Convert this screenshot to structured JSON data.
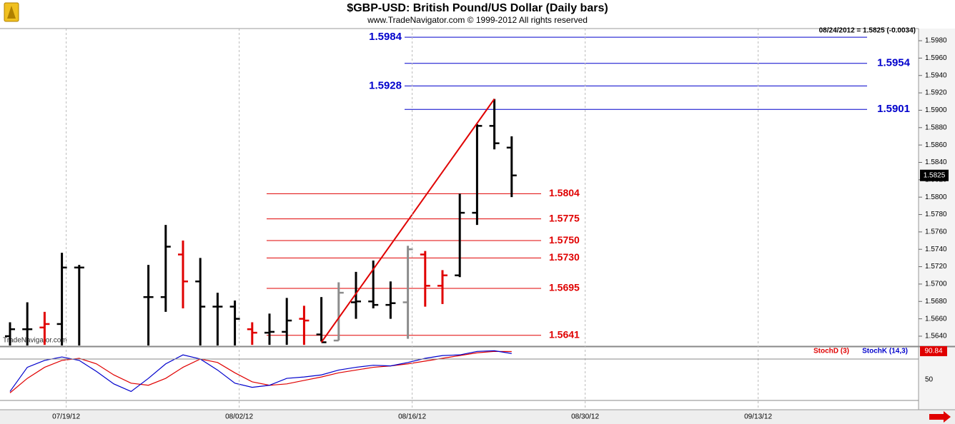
{
  "chart_data": [
    {
      "type": "ohlc",
      "title": "$GBP-USD:  British Pound/US Dollar  (Daily bars)",
      "subtitle": "www.TradeNavigator.com © 1999-2012 All rights reserved",
      "info": "08/24/2012 = 1.5825 (-0.0034)",
      "watermark": "TradeNavigator.com",
      "categories": [
        null,
        null,
        null,
        "07/19/12",
        null,
        null,
        null,
        null,
        null,
        null,
        null,
        null,
        null,
        "08/02/12",
        null,
        null,
        null,
        null,
        null,
        null,
        null,
        null,
        null,
        "08/16/12",
        null,
        null,
        null,
        null,
        null,
        null,
        null,
        null,
        null,
        "08/30/12",
        null,
        null,
        null,
        null,
        null,
        null,
        null,
        null,
        null,
        "09/13/12",
        null,
        null,
        null,
        null,
        null,
        null,
        null,
        null,
        null
      ],
      "open": [
        1.564,
        1.5648,
        1.565,
        1.5654,
        1.5719,
        null,
        null,
        null,
        1.5685,
        1.5685,
        1.5734,
        1.5703,
        1.5674,
        1.5674,
        1.5648,
        1.5644,
        1.5645,
        1.566,
        1.5642,
        1.5635,
        1.5679,
        1.568,
        1.5676,
        1.5679,
        1.5734,
        1.5698,
        1.571,
        1.5782,
        1.5882,
        1.5857,
        null,
        null,
        null,
        null,
        null,
        null,
        null,
        null,
        null,
        null,
        null,
        null,
        null,
        null,
        null,
        null,
        null,
        null,
        null,
        null,
        null,
        null,
        null
      ],
      "high": [
        1.5656,
        1.5679,
        1.5668,
        1.5736,
        1.5722,
        null,
        null,
        null,
        1.5722,
        1.5768,
        1.575,
        1.573,
        1.569,
        1.5681,
        1.5656,
        1.5666,
        1.5684,
        1.5675,
        1.5685,
        1.5702,
        1.5714,
        1.5727,
        1.5703,
        1.5744,
        1.5738,
        1.5716,
        1.5804,
        1.5884,
        1.5913,
        1.587,
        null,
        null,
        null,
        null,
        null,
        null,
        null,
        null,
        null,
        null,
        null,
        null,
        null,
        null,
        null,
        null,
        null,
        null,
        null,
        null,
        null,
        null,
        null
      ],
      "low": [
        1.562,
        1.5625,
        1.563,
        1.562,
        1.56,
        null,
        null,
        null,
        1.562,
        1.5668,
        1.5672,
        1.562,
        1.562,
        1.562,
        1.563,
        1.563,
        1.563,
        1.563,
        1.5634,
        1.5635,
        1.566,
        1.5672,
        1.566,
        1.5637,
        1.5674,
        1.5677,
        1.5708,
        1.5768,
        1.5855,
        1.58,
        null,
        null,
        null,
        null,
        null,
        null,
        null,
        null,
        null,
        null,
        null,
        null,
        null,
        null,
        null,
        null,
        null,
        null,
        null,
        null,
        null,
        null,
        null
      ],
      "close": [
        1.5648,
        1.5648,
        1.5654,
        1.5719,
        1.5719,
        null,
        null,
        null,
        1.5685,
        1.5743,
        1.5703,
        1.5674,
        1.5674,
        1.566,
        1.5644,
        1.5645,
        1.5658,
        1.5658,
        1.5633,
        1.569,
        1.568,
        1.5676,
        1.5678,
        1.574,
        1.5698,
        1.571,
        1.5782,
        1.5882,
        1.5862,
        1.5825,
        null,
        null,
        null,
        null,
        null,
        null,
        null,
        null,
        null,
        null,
        null,
        null,
        null,
        null,
        null,
        null,
        null,
        null,
        null,
        null,
        null,
        null,
        null
      ],
      "bar_colors": [
        "#000000",
        "#000000",
        "#e00000",
        "#000000",
        "#000000",
        null,
        null,
        null,
        "#000000",
        "#000000",
        "#e00000",
        "#000000",
        "#000000",
        "#000000",
        "#e00000",
        "#000000",
        "#000000",
        "#e00000",
        "#000000",
        "#8c8c8c",
        "#000000",
        "#000000",
        "#000000",
        "#8c8c8c",
        "#e00000",
        "#e00000",
        "#000000",
        "#000000",
        "#000000",
        "#000000",
        null,
        null,
        null,
        null,
        null,
        null,
        null,
        null,
        null,
        null,
        null,
        null,
        null,
        null,
        null,
        null,
        null,
        null,
        null,
        null,
        null,
        null,
        null
      ],
      "ylim": [
        1.56293,
        1.5994
      ],
      "yticks": [
        {
          "value": 1.564,
          "label": "1.5640"
        },
        {
          "value": 1.566,
          "label": "1.5660"
        },
        {
          "value": 1.568,
          "label": "1.5680"
        },
        {
          "value": 1.57,
          "label": "1.5700"
        },
        {
          "value": 1.572,
          "label": "1.5720"
        },
        {
          "value": 1.574,
          "label": "1.5740"
        },
        {
          "value": 1.576,
          "label": "1.5760"
        },
        {
          "value": 1.578,
          "label": "1.5780"
        },
        {
          "value": 1.58,
          "label": "1.5800"
        },
        {
          "value": 1.582,
          "label": "1.5820"
        },
        {
          "value": 1.584,
          "label": "1.5840"
        },
        {
          "value": 1.586,
          "label": "1.5860"
        },
        {
          "value": 1.588,
          "label": "1.5880"
        },
        {
          "value": 1.59,
          "label": "1.5900"
        },
        {
          "value": 1.592,
          "label": "1.5920"
        },
        {
          "value": 1.594,
          "label": "1.5940"
        },
        {
          "value": 1.596,
          "label": "1.5960"
        },
        {
          "value": 1.598,
          "label": "1.5980"
        }
      ],
      "blue_levels": [
        {
          "value": 1.5984,
          "label": "1.5984"
        },
        {
          "value": 1.5954,
          "label": "1.5954"
        },
        {
          "value": 1.5928,
          "label": "1.5928"
        },
        {
          "value": 1.5901,
          "label": "1.5901"
        }
      ],
      "blue_color": "#0000cc",
      "red_levels": [
        {
          "value": 1.5804,
          "label": "1.5804"
        },
        {
          "value": 1.5775,
          "label": "1.5775"
        },
        {
          "value": 1.575,
          "label": "1.5750"
        },
        {
          "value": 1.573,
          "label": "1.5730"
        },
        {
          "value": 1.5695,
          "label": "1.5695"
        },
        {
          "value": 1.5641,
          "label": "1.5641"
        }
      ],
      "red_color": "#e00000",
      "trendline": {
        "from": {
          "index": 18,
          "value": 1.5633
        },
        "to": {
          "index": 28,
          "value": 1.5913
        },
        "color": "#e00000"
      }
    },
    {
      "type": "line",
      "series": [
        {
          "name": "StochD (3)",
          "color": "#e00000",
          "values": [
            31,
            52,
            68,
            78,
            81,
            73,
            57,
            45,
            42,
            52,
            68,
            80,
            75,
            60,
            47,
            42,
            44,
            49,
            54,
            60,
            64,
            68,
            70,
            73,
            77,
            81,
            85,
            89,
            91,
            90.84,
            null,
            null,
            null,
            null,
            null,
            null,
            null,
            null,
            null,
            null,
            null,
            null,
            null,
            null,
            null,
            null,
            null,
            null,
            null,
            null,
            null,
            null,
            null
          ]
        },
        {
          "name": "StochK (14,3)",
          "color": "#0000cc",
          "values": [
            33,
            68,
            78,
            83,
            78,
            62,
            44,
            33,
            52,
            73,
            86,
            80,
            64,
            45,
            39,
            42,
            52,
            54,
            57,
            64,
            68,
            71,
            70,
            75,
            81,
            85,
            86,
            91,
            92,
            88,
            null,
            null,
            null,
            null,
            null,
            null,
            null,
            null,
            null,
            null,
            null,
            null,
            null,
            null,
            null,
            null,
            null,
            null,
            null,
            null,
            null,
            null,
            null
          ]
        }
      ],
      "ylim": [
        6.6,
        96.5
      ],
      "yticks": [
        50
      ],
      "levels": [
        20,
        80
      ]
    }
  ]
}
